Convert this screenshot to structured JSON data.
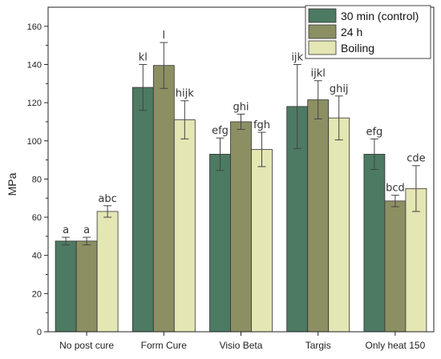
{
  "chart_data": {
    "type": "bar",
    "ylabel": "MPa",
    "xlabel": "",
    "ylim": [
      0,
      170
    ],
    "yticks": [
      0,
      20,
      40,
      60,
      80,
      100,
      120,
      140,
      160
    ],
    "categories": [
      "No post cure",
      "Form Cure",
      "Visio Beta",
      "Targis",
      "Only heat 150"
    ],
    "series": [
      {
        "name": "30 min (control)",
        "color": "#4c7a62",
        "values": [
          47.5,
          128,
          93,
          118,
          93
        ],
        "errors": [
          2,
          12,
          8.5,
          22,
          8
        ],
        "labels": [
          "a",
          "kl",
          "efg",
          "ijk",
          "efg"
        ]
      },
      {
        "name": "24 h",
        "color": "#8c8f62",
        "values": [
          47.5,
          139.5,
          110,
          121.5,
          68.5
        ],
        "errors": [
          2,
          12,
          4,
          10,
          3
        ],
        "labels": [
          "a",
          "l",
          "ghi",
          "ijkl",
          "bcd"
        ]
      },
      {
        "name": "Boiling",
        "color": "#e4e6b4",
        "values": [
          63,
          111,
          95.5,
          112,
          75
        ],
        "errors": [
          3,
          10,
          9,
          11.5,
          12
        ],
        "labels": [
          "abc",
          "hijk",
          "fgh",
          "ghij",
          "cde"
        ]
      }
    ],
    "legend_position": "top-right",
    "grid": false
  }
}
